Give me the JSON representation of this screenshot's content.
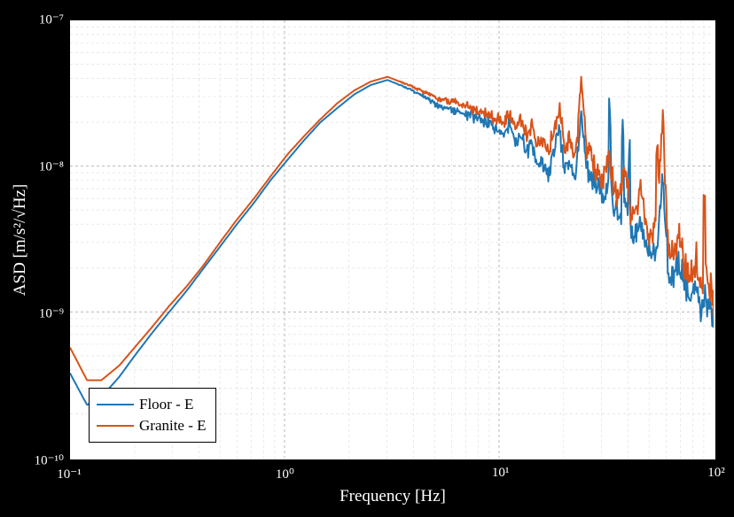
{
  "chart": {
    "type": "line",
    "background_color": "#ffffff",
    "page_background": "#000000",
    "frame_color": "#000000",
    "axis_text_color": "#ffffff",
    "xscale": "log",
    "yscale": "log",
    "xlim": [
      0.1,
      100
    ],
    "ylim": [
      1e-10,
      1e-07
    ],
    "xlabel": "Frequency [Hz]",
    "ylabel": "ASD [m/s²/√Hz]",
    "label_fontsize": 18,
    "tick_fontsize": 15,
    "grid_major_color": "#b8b8b8",
    "grid_minor_color": "#dcdcdc",
    "grid_dash": "3 3",
    "line_width": 2.0,
    "legend": {
      "position": "lower-left",
      "items": [
        {
          "label": "Floor - E",
          "color": "#1f77b4"
        },
        {
          "label": "Granite - E",
          "color": "#d95319"
        }
      ],
      "border_color": "#000000",
      "background": "#ffffff",
      "fontsize": 17
    },
    "x_major_ticks": [
      0.1,
      1,
      10,
      100
    ],
    "x_major_tick_labels": [
      "10⁻¹",
      "10⁰",
      "10¹",
      "10²"
    ],
    "y_major_ticks": [
      1e-10,
      1e-09,
      1e-08,
      1e-07
    ],
    "y_major_tick_labels": [
      "10⁻¹⁰",
      "10⁻⁹",
      "10⁻⁸",
      "10⁻⁷"
    ],
    "series": [
      {
        "name": "Floor - E",
        "color": "#1f77b4",
        "freq": [
          0.1,
          0.12,
          0.14,
          0.17,
          0.2,
          0.24,
          0.29,
          0.35,
          0.42,
          0.5,
          0.6,
          0.72,
          0.86,
          1.03,
          1.23,
          1.47,
          1.76,
          2.11,
          2.52,
          3.02,
          3.61,
          4.32,
          5.16,
          6.17,
          7.39,
          8.83,
          10.5,
          11.2,
          11.9,
          12.6,
          13.4,
          14.2,
          15.0,
          16.0,
          17.0,
          18.0,
          19.1,
          20.2,
          21.4,
          22.7,
          24.1,
          25.5,
          27.1,
          28.7,
          30.5,
          32.3,
          34.3,
          36.3,
          38.5,
          40.8,
          43.3,
          45.9,
          48.7,
          51.6,
          54.7,
          58.0,
          61.5,
          65.2,
          69.2,
          73.4,
          77.8,
          82.5,
          87.5,
          92.8,
          98.4
        ],
        "asd": [
          3.8e-10,
          2.3e-10,
          2.6e-10,
          3.6e-10,
          5e-10,
          7.1e-10,
          1e-09,
          1.4e-09,
          2e-09,
          2.8e-09,
          4e-09,
          5.6e-09,
          8e-09,
          1.1e-08,
          1.5e-08,
          2e-08,
          2.5e-08,
          3.1e-08,
          3.6e-08,
          3.9e-08,
          3.5e-08,
          3.1e-08,
          2.6e-08,
          2.4e-08,
          2.2e-08,
          2e-08,
          1.7e-08,
          2e-08,
          1.4e-08,
          1.7e-08,
          1.2e-08,
          1.5e-08,
          1e-08,
          1.1e-08,
          8.5e-09,
          1.3e-08,
          1.9e-08,
          9.2e-09,
          1.1e-08,
          7.8e-09,
          2.4e-08,
          9.9e-09,
          8e-09,
          7.2e-09,
          6.2e-09,
          8e-09,
          5.3e-09,
          4.6e-09,
          5.8e-09,
          3.8e-09,
          3.2e-09,
          4.2e-09,
          2.8e-09,
          2.4e-09,
          3.1e-09,
          8.5e-09,
          2e-09,
          1.7e-09,
          2.3e-09,
          1.4e-09,
          1.2e-09,
          1.6e-09,
          1e-09,
          1.3e-09,
          8.5e-10
        ]
      },
      {
        "name": "Granite - E",
        "color": "#d95319",
        "freq": [
          0.1,
          0.12,
          0.14,
          0.17,
          0.2,
          0.24,
          0.29,
          0.35,
          0.42,
          0.5,
          0.6,
          0.72,
          0.86,
          1.03,
          1.23,
          1.47,
          1.76,
          2.11,
          2.52,
          3.02,
          3.61,
          4.32,
          5.16,
          6.17,
          7.39,
          8.83,
          10.5,
          11.2,
          11.9,
          12.6,
          13.4,
          14.2,
          15.0,
          16.0,
          17.0,
          18.0,
          19.1,
          20.2,
          21.4,
          22.7,
          24.1,
          25.5,
          27.1,
          28.7,
          30.5,
          32.3,
          34.3,
          36.3,
          38.5,
          40.8,
          43.3,
          45.9,
          48.7,
          51.6,
          54.7,
          58.0,
          61.5,
          65.2,
          69.2,
          73.4,
          77.8,
          82.5,
          87.5,
          92.8,
          98.4
        ],
        "asd": [
          5.7e-10,
          3.4e-10,
          3.4e-10,
          4.3e-10,
          5.7e-10,
          7.8e-10,
          1.1e-09,
          1.5e-09,
          2.1e-09,
          3e-09,
          4.3e-09,
          6e-09,
          8.5e-09,
          1.2e-08,
          1.6e-08,
          2.1e-08,
          2.7e-08,
          3.3e-08,
          3.8e-08,
          4.1e-08,
          3.7e-08,
          3.3e-08,
          2.9e-08,
          2.8e-08,
          2.5e-08,
          2.3e-08,
          2e-08,
          2.3e-08,
          1.8e-08,
          2.1e-08,
          1.6e-08,
          1.9e-08,
          1.4e-08,
          1.5e-08,
          1.2e-08,
          1.8e-08,
          2.6e-08,
          1.3e-08,
          1.6e-08,
          1.1e-08,
          4e-08,
          1.4e-08,
          1.1e-08,
          9.5e-09,
          8e-09,
          1.2e-08,
          7.1e-09,
          6.2e-09,
          9e-09,
          5.1e-09,
          4.3e-09,
          7e-09,
          3.8e-09,
          3.2e-09,
          5e-09,
          2.2e-08,
          2.7e-09,
          2.3e-09,
          3.5e-09,
          1.9e-09,
          1.6e-09,
          2.5e-09,
          1.4e-09,
          2e-09,
          1.2e-09
        ]
      }
    ]
  }
}
